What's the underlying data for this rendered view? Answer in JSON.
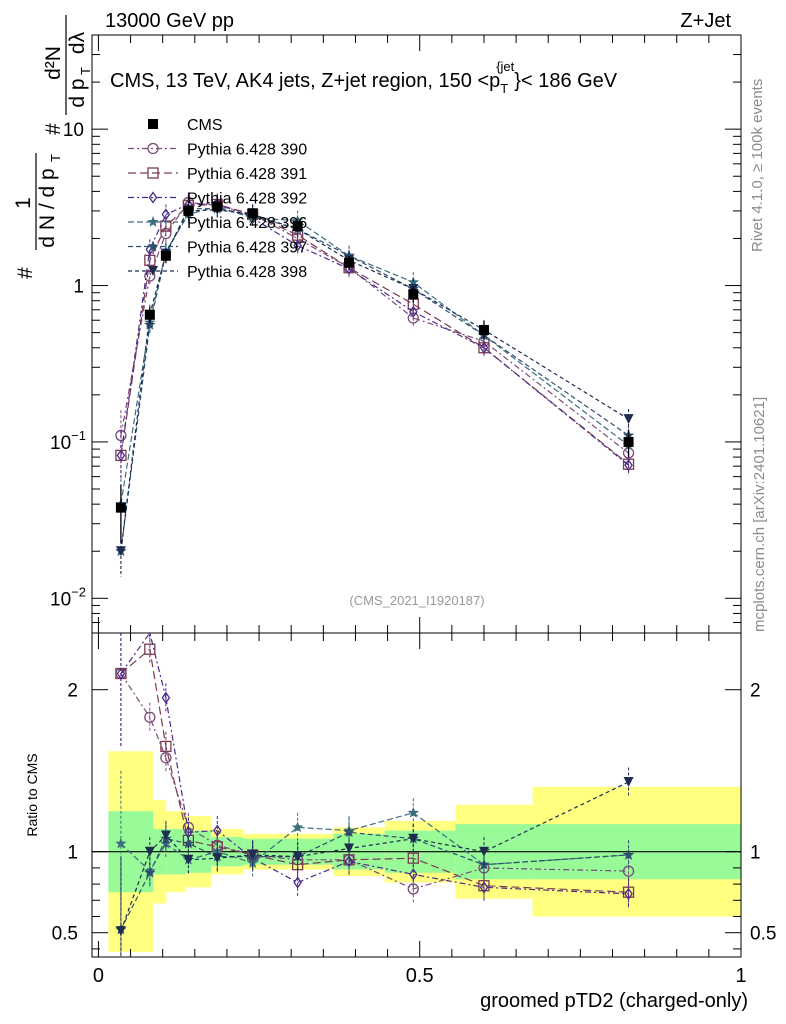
{
  "header": {
    "left": "13000 GeV pp",
    "right": "Z+Jet"
  },
  "side_labels": {
    "rivet": "Rivet 4.1.0, ≥ 100k events",
    "mcplots": "mcplots.cern.ch [arXiv:2401.10621]"
  },
  "analysis_id": "(CMS_2021_I1920187)",
  "chart_data": [
    {
      "panel": "main",
      "type": "scatter",
      "title": "CMS, 13 TeV, AK4 jets, Z+jet region, 150 <p_T^jet> < 186 GeV",
      "title_parts": {
        "pre": "CMS, 13 TeV, AK4 jets, Z+jet region, 150 <p",
        "sub": "T",
        "sup": "{jet",
        "post": "}< 186 GeV"
      },
      "ylabel": "1/(dN/dp_T) d²N/(dp_T dλ)",
      "ylabel_parts": {
        "n1": "1",
        "d1": "d N / d p",
        "n2": "d²N",
        "d2": "d p",
        "d2b": "dλ",
        "hash": "#",
        "t": "T"
      },
      "yscale": "log",
      "ylim": [
        0.006,
        40
      ],
      "xlim": [
        -0.01,
        1.0
      ],
      "ytick_labels": [
        {
          "v": 0.01,
          "base": "10",
          "exp": "−2"
        },
        {
          "v": 0.1,
          "base": "10",
          "exp": "−1"
        },
        {
          "v": 1,
          "base": "1",
          "exp": ""
        },
        {
          "v": 10,
          "base": "10",
          "exp": ""
        }
      ],
      "x": [
        0.035,
        0.08,
        0.105,
        0.14,
        0.185,
        0.24,
        0.31,
        0.39,
        0.49,
        0.6,
        0.825
      ],
      "data": {
        "name": "CMS",
        "values": [
          0.038,
          0.65,
          1.55,
          3.0,
          3.2,
          2.9,
          2.4,
          1.4,
          0.88,
          0.52,
          0.1
        ],
        "err_rel": [
          0.4,
          0.12,
          0.1,
          0.1,
          0.08,
          0.08,
          0.08,
          0.1,
          0.12,
          0.14,
          0.2
        ]
      },
      "series": [
        {
          "name": "Pythia 6.428 390",
          "marker": "circle",
          "color": "#7a4a7a",
          "values": [
            0.11,
            1.15,
            2.15,
            3.4,
            3.25,
            2.85,
            2.0,
            1.3,
            0.62,
            0.44,
            0.085
          ]
        },
        {
          "name": "Pythia 6.428 391",
          "marker": "square",
          "color": "#7b3c52",
          "values": [
            0.082,
            1.45,
            2.4,
            3.25,
            3.3,
            2.85,
            2.1,
            1.3,
            0.76,
            0.4,
            0.072
          ]
        },
        {
          "name": "Pythia 6.428 392",
          "marker": "diamond",
          "color": "#4b2a8a",
          "values": [
            0.082,
            1.7,
            2.85,
            3.3,
            3.35,
            2.7,
            1.8,
            1.28,
            0.68,
            0.4,
            0.071
          ]
        },
        {
          "name": "Pythia 6.428 396",
          "marker": "star",
          "color": "#3e6e7e",
          "values": [
            0.04,
            0.58,
            1.65,
            2.85,
            3.2,
            2.7,
            2.6,
            1.55,
            1.05,
            0.48,
            0.095
          ]
        },
        {
          "name": "Pythia 6.428 397",
          "marker": "star",
          "color": "#2f4f6f",
          "values": [
            0.02,
            0.56,
            1.6,
            3.1,
            3.1,
            2.8,
            2.3,
            1.55,
            0.95,
            0.48,
            0.11
          ]
        },
        {
          "name": "Pythia 6.428 398",
          "marker": "triangle-down",
          "color": "#1c2d50",
          "values": [
            0.02,
            0.65,
            1.6,
            3.0,
            3.05,
            2.85,
            2.3,
            1.45,
            0.95,
            0.52,
            0.14
          ]
        }
      ],
      "legend_position": "top-left"
    },
    {
      "panel": "ratio",
      "type": "line",
      "ylabel": "Ratio to CMS",
      "ylim": [
        0.35,
        2.35
      ],
      "yticks": [
        0.5,
        1,
        2
      ],
      "ytick_labels": [
        "0.5",
        "1",
        "2"
      ],
      "xlabel": "groomed pTD2 (charged-only)",
      "xticks": [
        0,
        0.5,
        1
      ],
      "xtick_labels": [
        "0",
        "0.5",
        "1"
      ],
      "reference_line": 1,
      "bands": {
        "edges": [
          0,
          0.07,
          0.09,
          0.12,
          0.16,
          0.21,
          0.27,
          0.35,
          0.43,
          0.54,
          0.66,
          1.0
        ],
        "green": [
          0.25,
          0.14,
          0.14,
          0.13,
          0.09,
          0.08,
          0.08,
          0.11,
          0.13,
          0.17,
          0.17
        ],
        "yellow": [
          0.62,
          0.32,
          0.25,
          0.22,
          0.14,
          0.11,
          0.11,
          0.15,
          0.19,
          0.29,
          0.4
        ]
      },
      "x": [
        0.035,
        0.08,
        0.105,
        0.14,
        0.185,
        0.24,
        0.31,
        0.39,
        0.49,
        0.6,
        0.825
      ],
      "series": [
        {
          "name": "Pythia 6.428 390",
          "values": [
            2.1,
            1.83,
            1.58,
            1.15,
            1.04,
            0.98,
            0.95,
            0.95,
            0.77,
            0.9,
            0.88
          ]
        },
        {
          "name": "Pythia 6.428 391",
          "values": [
            2.1,
            2.25,
            1.65,
            1.07,
            1.03,
            0.98,
            0.92,
            0.95,
            0.96,
            0.79,
            0.75
          ]
        },
        {
          "name": "Pythia 6.428 392",
          "values": [
            2.1,
            2.4,
            1.95,
            1.12,
            1.13,
            0.96,
            0.81,
            0.94,
            0.86,
            0.78,
            0.74
          ]
        },
        {
          "name": "Pythia 6.428 396",
          "values": [
            1.05,
            0.88,
            1.05,
            0.95,
            1.0,
            0.93,
            1.15,
            1.13,
            1.24,
            0.92,
            0.98
          ]
        },
        {
          "name": "Pythia 6.428 397",
          "values": [
            0.52,
            0.87,
            1.08,
            1.05,
            0.97,
            0.97,
            0.97,
            1.12,
            1.08,
            0.92,
            0.98
          ]
        },
        {
          "name": "Pythia 6.428 398",
          "values": [
            0.51,
            1.0,
            1.1,
            0.95,
            0.96,
            0.98,
            0.97,
            1.02,
            1.08,
            1.0,
            1.43
          ]
        }
      ]
    }
  ]
}
